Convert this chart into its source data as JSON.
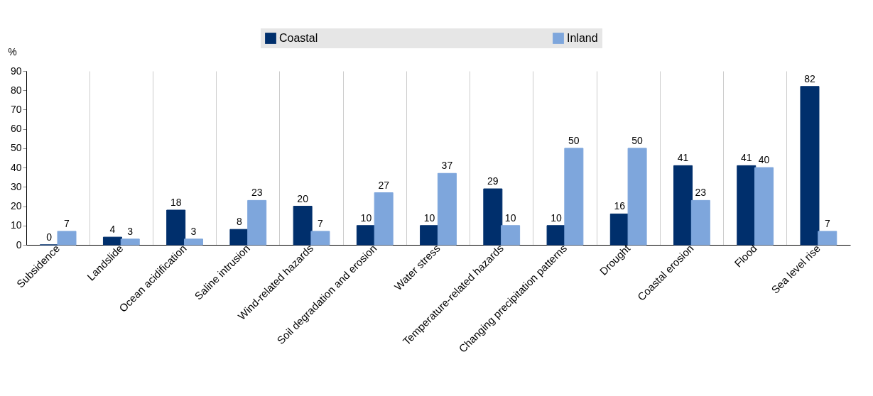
{
  "chart_data": {
    "type": "bar",
    "ylabel": "%",
    "categories": [
      "Subsidence",
      "Landslide",
      "Ocean acidification",
      "Saline intrusion",
      "Wind-related hazards",
      "Soil degradation and erosion",
      "Water stress",
      "Temperature-related hazards",
      "Changing precipitation patterns",
      "Drought",
      "Coastal erosion",
      "Flood",
      "Sea level rise"
    ],
    "series": [
      {
        "name": "Coastal",
        "color": "#002f6c",
        "values": [
          0,
          4,
          18,
          8,
          20,
          10,
          10,
          29,
          10,
          16,
          41,
          41,
          82
        ]
      },
      {
        "name": "Inland",
        "color": "#7ea6dc",
        "values": [
          7,
          3,
          3,
          23,
          7,
          27,
          37,
          10,
          50,
          50,
          23,
          40,
          7
        ]
      }
    ],
    "ylim": [
      0,
      90
    ],
    "yticks": [
      0,
      10,
      20,
      30,
      40,
      50,
      60,
      70,
      80,
      90
    ],
    "grid": "x",
    "legend": "top",
    "data_labels": true
  }
}
